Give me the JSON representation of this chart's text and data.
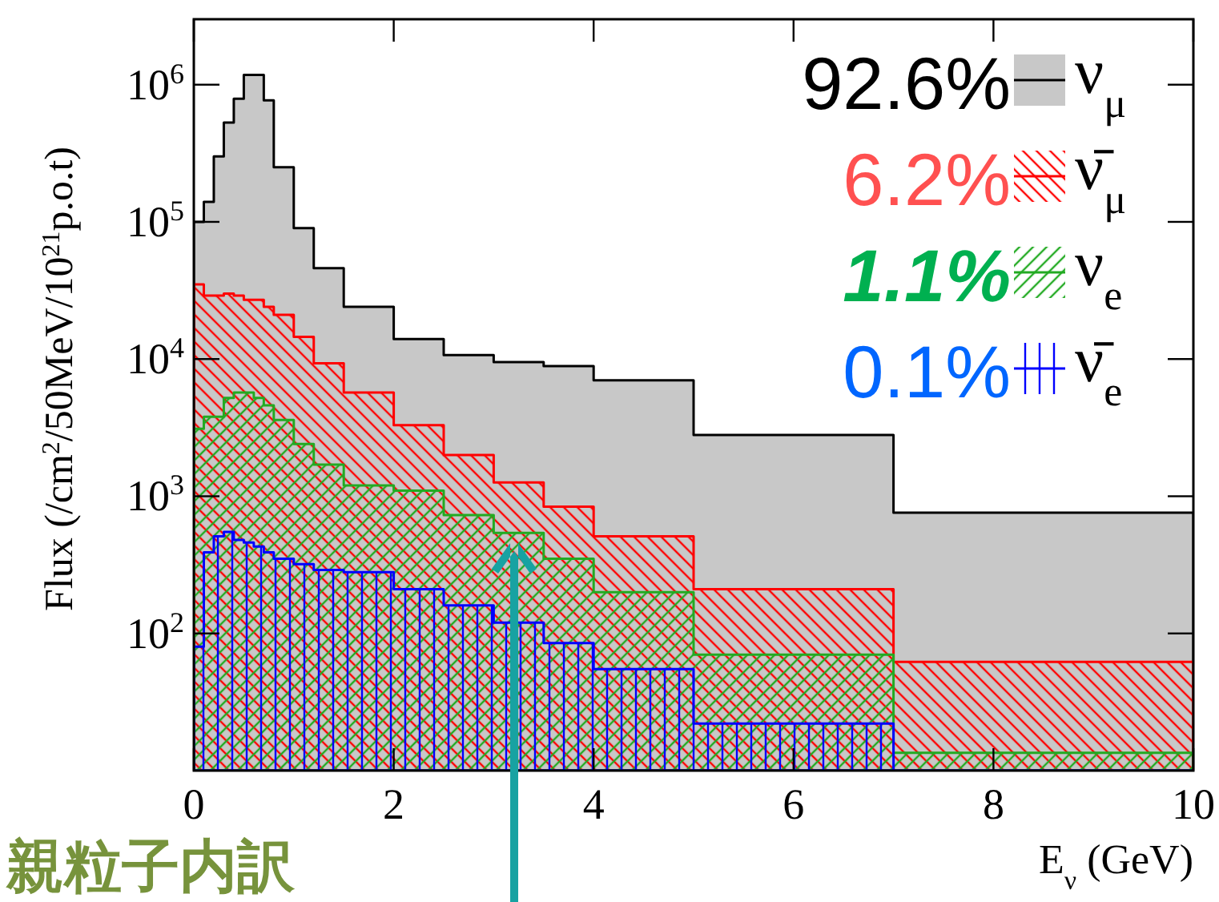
{
  "chart_data": {
    "type": "histogram",
    "xlabel": "E$_{ν}$ (GeV)",
    "ylabel": "Flux (/cm$^{2}$/50MeV/10$^{21}$p.o.t)",
    "bins": [
      0,
      0.1,
      0.2,
      0.3,
      0.4,
      0.5,
      0.6,
      0.7,
      0.8,
      0.9,
      1.0,
      1.2,
      1.5,
      2.0,
      2.5,
      3.0,
      3.5,
      4.0,
      5.0,
      7.0,
      10.0
    ],
    "series": [
      {
        "name": "ν$_{μ}$",
        "color": "#c8c8c8",
        "values": [
          100000,
          140000,
          300000,
          530000,
          790000,
          1180000,
          1180000,
          770000,
          250000,
          250000,
          90000,
          46000,
          24000,
          14000,
          10700,
          9500,
          8900,
          7000,
          2800,
          760
        ]
      },
      {
        "name": "ν̄$_{μ}$",
        "color": "#ff0000",
        "values": [
          35000,
          29000,
          29000,
          30000,
          29000,
          27000,
          27000,
          24000,
          21000,
          21000,
          14500,
          9300,
          5700,
          3300,
          2000,
          1260,
          840,
          510,
          210,
          62
        ]
      },
      {
        "name": "ν$_{e}$",
        "color": "#22aa22",
        "values": [
          3100,
          3800,
          3800,
          5200,
          5700,
          5700,
          5200,
          4600,
          3600,
          3600,
          2400,
          1700,
          1200,
          1100,
          730,
          540,
          350,
          200,
          70,
          13.5
        ]
      },
      {
        "name": "ν̄$_{e}$",
        "color": "#0000ff",
        "values": [
          80,
          390,
          510,
          550,
          480,
          460,
          430,
          390,
          350,
          350,
          320,
          290,
          280,
          210,
          160,
          120,
          85,
          55,
          22,
          null
        ]
      }
    ],
    "xlim": [
      0,
      10
    ],
    "ylim": [
      10,
      3000000
    ],
    "log": true,
    "xticks": [
      0,
      2,
      4,
      6,
      8,
      10
    ],
    "yticks": [
      {
        "value": 100,
        "label": "10$^{2}$"
      },
      {
        "value": 1000,
        "label": "10$^{3}$"
      },
      {
        "value": 10000,
        "label": "10$^{4}$"
      },
      {
        "value": 100000,
        "label": "10$^{5}$"
      },
      {
        "value": 1000000,
        "label": "10$^{6}$"
      }
    ],
    "legend": "top right",
    "annotations": [
      "92.6%",
      "6.2%",
      "1.1%",
      "0.1%",
      "親粒子内訳"
    ]
  }
}
